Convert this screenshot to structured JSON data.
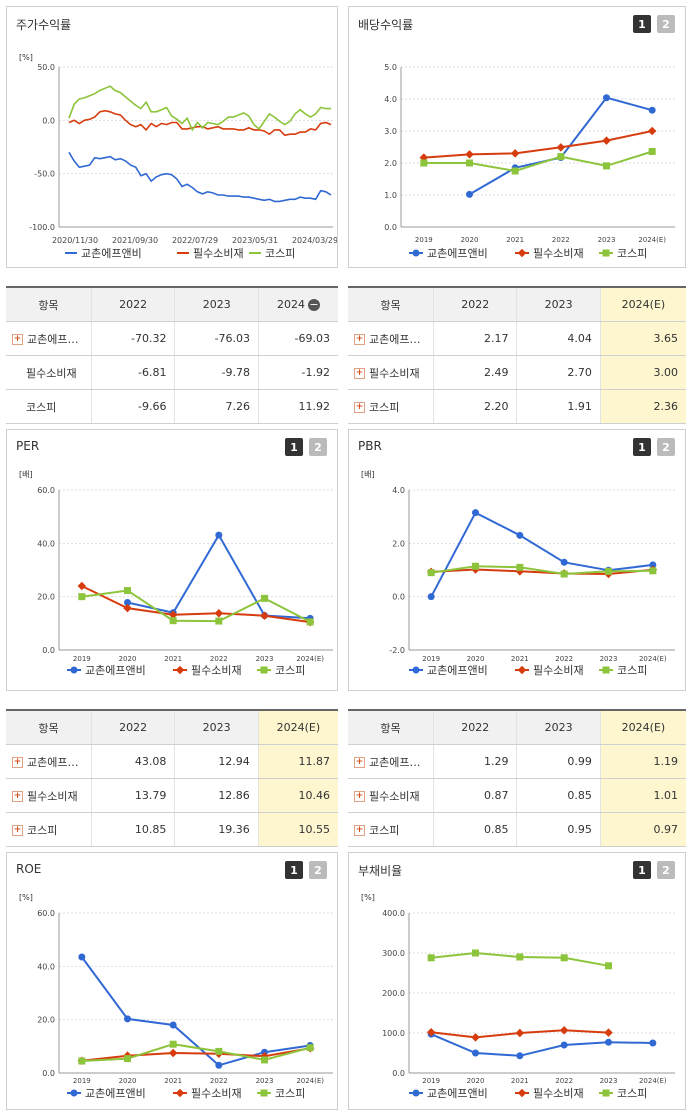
{
  "legend_names": [
    "교촌에프앤비",
    "필수소비재",
    "코스피"
  ],
  "colors": {
    "s0": "#3169d4",
    "s1": "#d63c0e",
    "s2": "#8cc43c"
  },
  "panels": [
    {
      "id": "p0",
      "title": "주가수익률",
      "unit": "[%]",
      "buttons": [],
      "chart_data": {
        "type": "line",
        "yticks": [
          "50.0",
          "0.0",
          "-50.0",
          "-100.0"
        ],
        "xlabels": [
          "2020/11/30",
          "2021/09/30",
          "2022/07/29",
          "2023/05/31",
          "2024/03/29"
        ],
        "ylim": [
          -100,
          50
        ],
        "markers": false,
        "series": [
          {
            "name": "교촌에프앤비",
            "values": [
              -30,
              -38,
              -44,
              -43,
              -42,
              -35,
              -36,
              -35,
              -34,
              -37,
              -36,
              -38,
              -42,
              -44,
              -52,
              -50,
              -57,
              -53,
              -51,
              -50,
              -51,
              -55,
              -62,
              -60,
              -63,
              -67,
              -69,
              -67,
              -68,
              -70,
              -70,
              -71,
              -71,
              -71,
              -72,
              -72,
              -73,
              -74,
              -75,
              -74,
              -76,
              -76,
              -75,
              -74,
              -74,
              -72,
              -73,
              -73,
              -74,
              -66,
              -67,
              -70
            ]
          },
          {
            "name": "필수소비재",
            "values": [
              -2,
              0,
              -3,
              0,
              1,
              3,
              8,
              9,
              8,
              6,
              5,
              0,
              -4,
              -6,
              -4,
              -9,
              -3,
              -6,
              -3,
              -4,
              -2,
              -2,
              -8,
              -8,
              -7,
              -6,
              -6,
              -8,
              -7,
              -6,
              -8,
              -8,
              -8,
              -9,
              -9,
              -7,
              -9,
              -9,
              -10,
              -13,
              -9,
              -9,
              -14,
              -13,
              -13,
              -11,
              -11,
              -8,
              -9,
              -3,
              -2,
              -4
            ]
          },
          {
            "name": "코스피",
            "values": [
              2,
              15,
              20,
              21,
              23,
              25,
              28,
              30,
              32,
              28,
              26,
              22,
              18,
              14,
              11,
              17,
              8,
              8,
              10,
              12,
              4,
              1,
              -3,
              2,
              -9,
              -2,
              -7,
              -2,
              -3,
              -4,
              -1,
              3,
              3,
              5,
              7,
              4,
              -4,
              -8,
              -1,
              6,
              3,
              -1,
              -4,
              -1,
              6,
              10,
              6,
              3,
              6,
              12,
              11,
              11
            ]
          }
        ]
      }
    },
    {
      "id": "p1",
      "title": "배당수익률",
      "unit": "",
      "buttons": [
        "1",
        "2"
      ],
      "chart_data": {
        "type": "line",
        "yticks": [
          "5.0",
          "4.0",
          "3.0",
          "2.0",
          "1.0",
          "0.0"
        ],
        "xlabels": [
          "2019",
          "2020",
          "2021",
          "2022",
          "2023",
          "2024(E)"
        ],
        "ylim": [
          0,
          5
        ],
        "markers": true,
        "series": [
          {
            "name": "교촌에프앤비",
            "values": [
              null,
              1.02,
              1.85,
              2.17,
              4.04,
              3.65
            ]
          },
          {
            "name": "필수소비재",
            "values": [
              2.17,
              2.27,
              2.3,
              2.49,
              2.7,
              3.0
            ]
          },
          {
            "name": "코스피",
            "values": [
              2.0,
              2.0,
              1.75,
              2.2,
              1.91,
              2.36
            ]
          }
        ]
      }
    },
    {
      "id": "p2",
      "title": "PER",
      "unit": "[배]",
      "buttons": [
        "1",
        "2"
      ],
      "chart_data": {
        "type": "line",
        "yticks": [
          "60.0",
          "40.0",
          "20.0",
          "0.0"
        ],
        "xlabels": [
          "2019",
          "2020",
          "2021",
          "2022",
          "2023",
          "2024(E)"
        ],
        "ylim": [
          0,
          60
        ],
        "markers": true,
        "series": [
          {
            "name": "교촌에프앤비",
            "values": [
              null,
              17.8,
              14.0,
              43.08,
              12.94,
              11.87
            ]
          },
          {
            "name": "필수소비재",
            "values": [
              24.0,
              15.7,
              13.2,
              13.79,
              12.86,
              10.46
            ]
          },
          {
            "name": "코스피",
            "values": [
              20.0,
              22.3,
              11.0,
              10.85,
              19.36,
              10.55
            ]
          }
        ]
      }
    },
    {
      "id": "p3",
      "title": "PBR",
      "unit": "[배]",
      "buttons": [
        "1",
        "2"
      ],
      "chart_data": {
        "type": "line",
        "yticks": [
          "4.0",
          "2.0",
          "0.0",
          "-2.0"
        ],
        "xlabels": [
          "2019",
          "2020",
          "2021",
          "2022",
          "2023",
          "2024(E)"
        ],
        "ylim": [
          -2,
          4
        ],
        "markers": true,
        "series": [
          {
            "name": "교촌에프앤비",
            "values": [
              0.0,
              3.15,
              2.3,
              1.29,
              0.99,
              1.19
            ]
          },
          {
            "name": "필수소비재",
            "values": [
              0.93,
              1.02,
              0.95,
              0.87,
              0.85,
              1.01
            ]
          },
          {
            "name": "코스피",
            "values": [
              0.9,
              1.14,
              1.1,
              0.85,
              0.95,
              0.97
            ]
          }
        ]
      }
    },
    {
      "id": "p4",
      "title": "ROE",
      "unit": "[%]",
      "buttons": [
        "1",
        "2"
      ],
      "chart_data": {
        "type": "line",
        "yticks": [
          "60.0",
          "40.0",
          "20.0",
          "0.0"
        ],
        "xlabels": [
          "2019",
          "2020",
          "2021",
          "2022",
          "2023",
          "2024(E)"
        ],
        "ylim": [
          0,
          60
        ],
        "markers": true,
        "series": [
          {
            "name": "교촌에프앤비",
            "values": [
              43.5,
              20.3,
              18.0,
              2.9,
              7.8,
              10.3
            ]
          },
          {
            "name": "필수소비재",
            "values": [
              4.6,
              6.5,
              7.5,
              7.2,
              6.3,
              9.3
            ]
          },
          {
            "name": "코스피",
            "values": [
              4.5,
              5.4,
              10.8,
              8.1,
              4.9,
              9.5
            ]
          }
        ]
      }
    },
    {
      "id": "p5",
      "title": "부채비율",
      "unit": "[%]",
      "buttons": [
        "1",
        "2"
      ],
      "chart_data": {
        "type": "line",
        "yticks": [
          "400.0",
          "300.0",
          "200.0",
          "100.0",
          "0.0"
        ],
        "xlabels": [
          "2019",
          "2020",
          "2021",
          "2022",
          "2023",
          "2024(E)"
        ],
        "ylim": [
          0,
          400
        ],
        "markers": true,
        "series": [
          {
            "name": "교촌에프앤비",
            "values": [
              97,
              50,
              43,
              70,
              77,
              75
            ]
          },
          {
            "name": "필수소비재",
            "values": [
              102,
              89,
              100,
              107,
              101,
              null
            ]
          },
          {
            "name": "코스피",
            "values": [
              288,
              300,
              290,
              288,
              268,
              null
            ]
          }
        ]
      }
    }
  ],
  "tables": [
    {
      "id": "t0",
      "header": [
        "항목",
        "2022",
        "2023",
        "2024"
      ],
      "minus": true,
      "est": false,
      "rows": [
        {
          "name": "교촌에프…",
          "plus": true,
          "v": [
            "-70.32",
            "-76.03",
            "-69.03"
          ]
        },
        {
          "name": "필수소비재",
          "plus": false,
          "v": [
            "-6.81",
            "-9.78",
            "-1.92"
          ]
        },
        {
          "name": "코스피",
          "plus": false,
          "v": [
            "-9.66",
            "7.26",
            "11.92"
          ]
        }
      ]
    },
    {
      "id": "t1",
      "header": [
        "항목",
        "2022",
        "2023",
        "2024(E)"
      ],
      "minus": false,
      "est": true,
      "rows": [
        {
          "name": "교촌에프…",
          "plus": true,
          "v": [
            "2.17",
            "4.04",
            "3.65"
          ]
        },
        {
          "name": "필수소비재",
          "plus": true,
          "v": [
            "2.49",
            "2.70",
            "3.00"
          ]
        },
        {
          "name": "코스피",
          "plus": true,
          "v": [
            "2.20",
            "1.91",
            "2.36"
          ]
        }
      ]
    },
    {
      "id": "t2",
      "header": [
        "항목",
        "2022",
        "2023",
        "2024(E)"
      ],
      "minus": false,
      "est": true,
      "rows": [
        {
          "name": "교촌에프…",
          "plus": true,
          "v": [
            "43.08",
            "12.94",
            "11.87"
          ]
        },
        {
          "name": "필수소비재",
          "plus": true,
          "v": [
            "13.79",
            "12.86",
            "10.46"
          ]
        },
        {
          "name": "코스피",
          "plus": true,
          "v": [
            "10.85",
            "19.36",
            "10.55"
          ]
        }
      ]
    },
    {
      "id": "t3",
      "header": [
        "항목",
        "2022",
        "2023",
        "2024(E)"
      ],
      "minus": false,
      "est": true,
      "rows": [
        {
          "name": "교촌에프…",
          "plus": true,
          "v": [
            "1.29",
            "0.99",
            "1.19"
          ]
        },
        {
          "name": "필수소비재",
          "plus": true,
          "v": [
            "0.87",
            "0.85",
            "1.01"
          ]
        },
        {
          "name": "코스피",
          "plus": true,
          "v": [
            "0.85",
            "0.95",
            "0.97"
          ]
        }
      ]
    }
  ]
}
